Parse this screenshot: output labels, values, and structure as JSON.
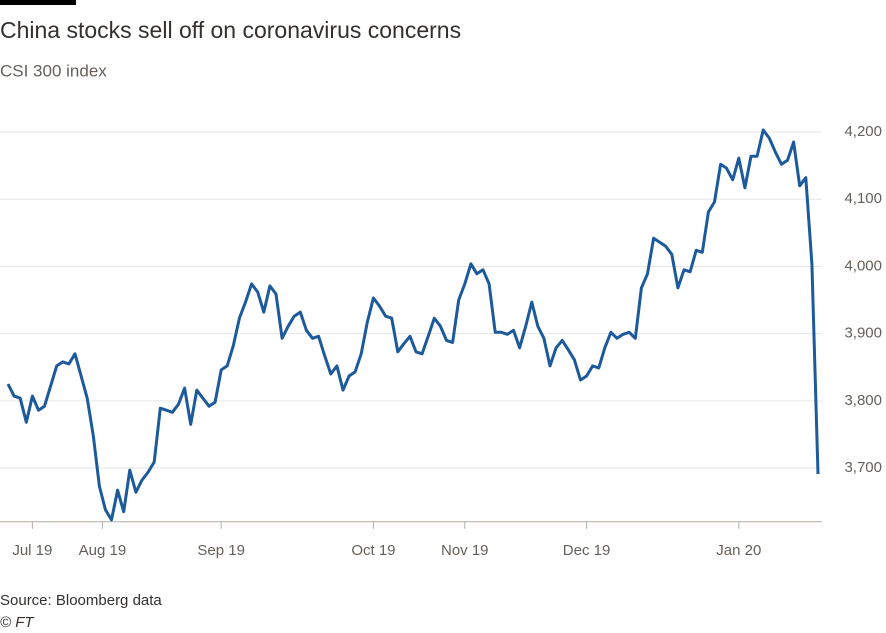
{
  "chart_data": {
    "type": "line",
    "title": "China stocks sell off on coronavirus concerns",
    "subtitle": "CSI 300 index",
    "source": "Source: Bloomberg data",
    "credit": "© FT",
    "color": "#1d5a9c",
    "grid": true,
    "xlim": [
      0,
      133
    ],
    "xticks": [
      {
        "value": 4,
        "label": "Jul 19"
      },
      {
        "value": 15.5,
        "label": "Aug 19"
      },
      {
        "value": 35,
        "label": "Sep 19"
      },
      {
        "value": 60,
        "label": "Oct 19"
      },
      {
        "value": 75,
        "label": "Nov 19"
      },
      {
        "value": 95,
        "label": "Dec 19"
      },
      {
        "value": 120,
        "label": "Jan 20"
      }
    ],
    "ylim": [
      3620,
      4220
    ],
    "yticks": [
      {
        "value": 3700,
        "label": "3,700"
      },
      {
        "value": 3800,
        "label": "3,800"
      },
      {
        "value": 3900,
        "label": "3,900"
      },
      {
        "value": 4000,
        "label": "4,000"
      },
      {
        "value": 4100,
        "label": "4,100"
      },
      {
        "value": 4200,
        "label": "4,200"
      }
    ],
    "values": [
      3825,
      3807,
      3804,
      3768,
      3807,
      3786,
      3792,
      3822,
      3852,
      3858,
      3855,
      3870,
      3837,
      3804,
      3748,
      3673,
      3638,
      3623,
      3667,
      3635,
      3697,
      3664,
      3682,
      3694,
      3709,
      3789,
      3786,
      3783,
      3795,
      3819,
      3765,
      3816,
      3804,
      3792,
      3798,
      3846,
      3852,
      3882,
      3923,
      3947,
      3974,
      3962,
      3932,
      3971,
      3959,
      3893,
      3911,
      3926,
      3932,
      3905,
      3893,
      3896,
      3867,
      3840,
      3852,
      3816,
      3837,
      3843,
      3870,
      3917,
      3953,
      3941,
      3926,
      3923,
      3873,
      3885,
      3896,
      3873,
      3870,
      3896,
      3923,
      3911,
      3890,
      3887,
      3950,
      3974,
      4004,
      3989,
      3995,
      3974,
      3902,
      3902,
      3899,
      3905,
      3879,
      3911,
      3947,
      3911,
      3893,
      3852,
      3879,
      3890,
      3876,
      3861,
      3831,
      3837,
      3852,
      3849,
      3879,
      3902,
      3893,
      3899,
      3902,
      3893,
      3968,
      3989,
      4042,
      4036,
      4030,
      4018,
      3968,
      3995,
      3992,
      4024,
      4021,
      4081,
      4096,
      4152,
      4146,
      4129,
      4161,
      4117,
      4164,
      4164,
      4203,
      4191,
      4170,
      4152,
      4158,
      4185,
      4120,
      4132,
      4004,
      3691
    ]
  }
}
